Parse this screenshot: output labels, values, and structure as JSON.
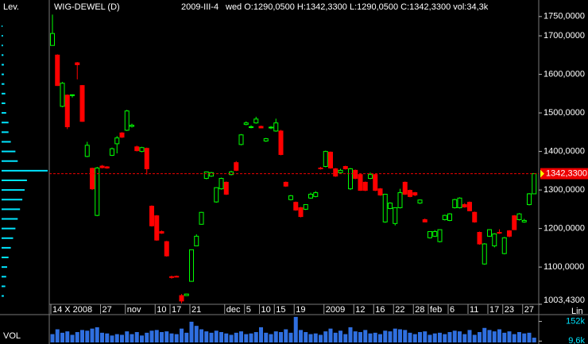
{
  "chart_data": {
    "type": "candlestick",
    "title": "WIG-DEWEL (D)",
    "date": "2009-III-4",
    "info": "wed O:1290,0500 H:1342,3300 L:1290,0500 C:1342,3300 vol:34,3k",
    "profile_label": "Lev.",
    "volume_label": "VOL",
    "volume_scale_label": "Lin",
    "up_color": "#00ff00",
    "down_color": "#ff0000",
    "volume_color": "#2f6fe0",
    "profile_color": "#00e5ff",
    "ylim": [
      1003.43,
      1762
    ],
    "yticks": [
      {
        "value": 1750,
        "label": "1750,0000"
      },
      {
        "value": 1700,
        "label": "1700,0000"
      },
      {
        "value": 1600,
        "label": "1600,0000"
      },
      {
        "value": 1500,
        "label": "1500,0000"
      },
      {
        "value": 1400,
        "label": "1400,0000"
      },
      {
        "value": 1300,
        "label": "1300,0000"
      },
      {
        "value": 1200,
        "label": "1200,0000"
      },
      {
        "value": 1100,
        "label": "1100,0000"
      },
      {
        "value": 1003.43,
        "label": "1003,4300"
      }
    ],
    "last_price": {
      "value": 1342.33,
      "label": "1342,3300"
    },
    "categories": [
      "14 X 2008",
      null,
      null,
      null,
      null,
      null,
      null,
      null,
      null,
      null,
      "27",
      null,
      null,
      null,
      null,
      "nov",
      null,
      null,
      null,
      null,
      null,
      "10",
      null,
      null,
      "17",
      null,
      null,
      null,
      "21",
      null,
      null,
      null,
      null,
      null,
      null,
      "dec",
      null,
      null,
      null,
      "5",
      null,
      null,
      "10",
      null,
      null,
      "15",
      null,
      null,
      null,
      "19",
      null,
      null,
      null,
      null,
      null,
      "2009",
      null,
      null,
      null,
      null,
      null,
      "12",
      null,
      null,
      null,
      "16",
      null,
      null,
      null,
      "22",
      null,
      null,
      null,
      "28",
      null,
      null,
      "feb",
      null,
      null,
      null,
      "6",
      null,
      null,
      null,
      "11",
      null,
      null,
      null,
      "17",
      null,
      null,
      "23",
      null,
      null,
      null,
      "27",
      null,
      null
    ],
    "ohlc": [
      [
        1675,
        1755,
        1675,
        1706
      ],
      [
        1650,
        1652,
        1570,
        1571
      ],
      [
        1517,
        1580,
        1515,
        1577
      ],
      [
        1546,
        1548,
        1458,
        1464
      ],
      [
        1545,
        1548,
        1540,
        1547
      ],
      [
        1630,
        1632,
        1587,
        1625
      ],
      [
        1571,
        1572,
        1477,
        1478
      ],
      [
        1387,
        1425,
        1385,
        1416
      ],
      [
        1356,
        1358,
        1300,
        1303
      ],
      [
        1234,
        1360,
        1232,
        1357
      ],
      [
        1362,
        1365,
        1356,
        1358
      ],
      [
        1360,
        1362,
        1355,
        1357
      ],
      [
        1390,
        1410,
        1388,
        1407
      ],
      [
        1420,
        1440,
        1395,
        1435
      ],
      [
        1448,
        1450,
        1435,
        1437
      ],
      [
        1455,
        1508,
        1453,
        1505
      ],
      [
        1465,
        1472,
        1462,
        1468
      ],
      [
        1412,
        1415,
        1400,
        1402
      ],
      [
        1400,
        1412,
        1398,
        1410
      ],
      [
        1408,
        1410,
        1340,
        1355
      ],
      [
        1258,
        1260,
        1205,
        1207
      ],
      [
        1233,
        1235,
        1168,
        1170
      ],
      [
        1192,
        1195,
        1186,
        1188
      ],
      [
        1166,
        1168,
        1127,
        1129
      ],
      [
        1075,
        1078,
        1070,
        1073
      ],
      [
        1076,
        1078,
        1074,
        1075
      ],
      [
        1026,
        1030,
        1006,
        1012
      ],
      [
        1026,
        1031,
        1025,
        1030
      ],
      [
        1063,
        1145,
        1062,
        1145
      ],
      [
        1155,
        1185,
        1154,
        1180
      ],
      [
        1211,
        1243,
        1210,
        1242
      ],
      [
        1330,
        1348,
        1328,
        1347
      ],
      [
        1336,
        1347,
        1334,
        1345
      ],
      [
        1269,
        1307,
        1267,
        1306
      ],
      [
        1303,
        1332,
        1301,
        1330
      ],
      [
        1320,
        1322,
        1287,
        1289
      ],
      [
        1340,
        1350,
        1338,
        1347
      ],
      [
        1371,
        1375,
        1349,
        1351
      ],
      [
        1418,
        1445,
        1416,
        1443
      ],
      [
        1470,
        1478,
        1468,
        1474
      ],
      [
        1462,
        1468,
        1460,
        1464
      ],
      [
        1474,
        1490,
        1472,
        1484
      ],
      [
        1465,
        1467,
        1460,
        1461
      ],
      [
        1427,
        1435,
        1425,
        1433
      ],
      [
        1462,
        1466,
        1458,
        1463
      ],
      [
        1453,
        1485,
        1451,
        1474
      ],
      [
        1453,
        1456,
        1390,
        1392
      ],
      [
        1320,
        1322,
        1308,
        1310
      ],
      [
        1275,
        1287,
        1273,
        1285
      ],
      [
        1268,
        1270,
        1246,
        1248
      ],
      [
        1254,
        1256,
        1229,
        1231
      ],
      [
        1250,
        1262,
        1248,
        1262
      ],
      [
        1279,
        1293,
        1277,
        1289
      ],
      [
        1283,
        1297,
        1281,
        1293
      ],
      [
        1357,
        1360,
        1353,
        1355
      ],
      [
        1361,
        1402,
        1359,
        1400
      ],
      [
        1398,
        1400,
        1355,
        1357
      ],
      [
        1355,
        1357,
        1334,
        1336
      ],
      [
        1345,
        1355,
        1343,
        1351
      ],
      [
        1361,
        1363,
        1353,
        1355
      ],
      [
        1303,
        1357,
        1300,
        1355
      ],
      [
        1351,
        1353,
        1328,
        1330
      ],
      [
        1340,
        1342,
        1298,
        1299
      ],
      [
        1320,
        1322,
        1297,
        1299
      ],
      [
        1330,
        1345,
        1328,
        1340
      ],
      [
        1340,
        1342,
        1297,
        1299
      ],
      [
        1303,
        1305,
        1285,
        1287
      ],
      [
        1217,
        1290,
        1215,
        1289
      ],
      [
        1252,
        1268,
        1250,
        1266
      ],
      [
        1213,
        1254,
        1208,
        1254
      ],
      [
        1254,
        1303,
        1252,
        1293
      ],
      [
        1320,
        1322,
        1287,
        1289
      ],
      [
        1299,
        1301,
        1281,
        1283
      ],
      [
        1293,
        1295,
        1284,
        1287
      ],
      [
        1266,
        1275,
        1264,
        1274
      ],
      [
        1223,
        1226,
        1216,
        1217
      ],
      [
        1176,
        1192,
        1174,
        1192
      ],
      [
        1180,
        1196,
        1178,
        1192
      ],
      [
        1166,
        1197,
        1164,
        1197
      ],
      [
        1223,
        1236,
        1221,
        1234
      ],
      [
        1221,
        1240,
        1219,
        1238
      ],
      [
        1254,
        1277,
        1252,
        1275
      ],
      [
        1254,
        1281,
        1252,
        1279
      ],
      [
        1262,
        1266,
        1254,
        1256
      ],
      [
        1268,
        1270,
        1245,
        1246
      ],
      [
        1242,
        1244,
        1215,
        1217
      ],
      [
        1190,
        1192,
        1158,
        1160
      ],
      [
        1108,
        1162,
        1106,
        1160
      ],
      [
        1180,
        1198,
        1178,
        1197
      ],
      [
        1155,
        1188,
        1151,
        1186
      ],
      [
        1190,
        1198,
        1186,
        1188
      ],
      [
        1135,
        1178,
        1133,
        1176
      ],
      [
        1194,
        1196,
        1177,
        1180
      ],
      [
        1233,
        1235,
        1196,
        1197
      ],
      [
        1223,
        1240,
        1221,
        1238
      ],
      [
        1217,
        1225,
        1215,
        1221
      ],
      [
        1262,
        1292,
        1260,
        1290
      ],
      [
        1290.05,
        1342.33,
        1290.05,
        1342.33
      ]
    ],
    "volumes": [
      60000,
      95000,
      70000,
      80000,
      55000,
      75000,
      90000,
      85000,
      100000,
      110000,
      70000,
      65000,
      50000,
      60000,
      55000,
      80000,
      60000,
      75000,
      50000,
      70000,
      85000,
      90000,
      75000,
      80000,
      65000,
      60000,
      100000,
      70000,
      150000,
      120000,
      95000,
      80000,
      70000,
      85000,
      75000,
      65000,
      55000,
      70000,
      80000,
      60000,
      65000,
      75000,
      110000,
      70000,
      60000,
      80000,
      75000,
      95000,
      70000,
      185000,
      90000,
      75000,
      60000,
      65000,
      55000,
      80000,
      100000,
      70000,
      85000,
      60000,
      110000,
      80000,
      75000,
      90000,
      65000,
      70000,
      60000,
      85000,
      80000,
      100000,
      95000,
      90000,
      70000,
      60000,
      75000,
      80000,
      55000,
      65000,
      70000,
      60000,
      75000,
      85000,
      80000,
      60000,
      90000,
      55000,
      75000,
      105000,
      90000,
      80000,
      95000,
      70000,
      80000,
      60000,
      75000,
      65000,
      70000,
      34300
    ],
    "vlim": [
      0,
      190000
    ],
    "vticks": [
      {
        "value": 152000,
        "label": "152k"
      },
      {
        "value": 9600,
        "label": "9,6k"
      }
    ],
    "profile": {
      "levels": [
        1025,
        1050,
        1075,
        1100,
        1125,
        1150,
        1175,
        1200,
        1225,
        1250,
        1275,
        1300,
        1325,
        1350,
        1375,
        1400,
        1425,
        1450,
        1475,
        1500,
        1525,
        1550,
        1575,
        1600,
        1625,
        1650,
        1675,
        1700,
        1725
      ],
      "values": [
        5,
        8,
        10,
        12,
        15,
        20,
        25,
        30,
        35,
        40,
        45,
        50,
        55,
        100,
        35,
        30,
        20,
        15,
        15,
        10,
        8,
        8,
        6,
        5,
        5,
        4,
        3,
        3,
        2
      ]
    }
  }
}
